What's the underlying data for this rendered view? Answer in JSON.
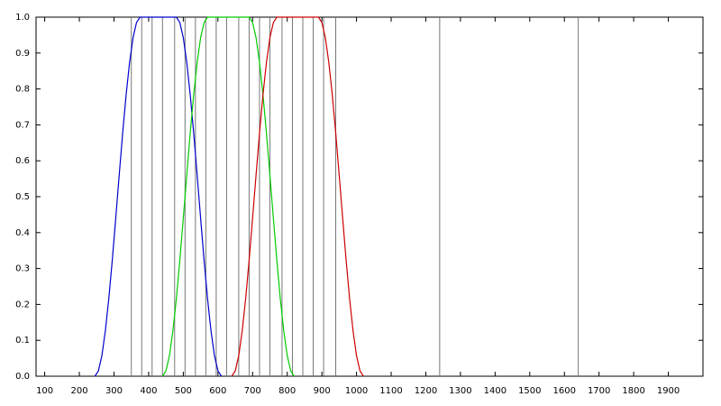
{
  "chart_data": {
    "type": "line",
    "xlim": [
      75,
      2000
    ],
    "ylim": [
      0,
      1
    ],
    "xticks": [
      100,
      200,
      300,
      400,
      500,
      600,
      700,
      800,
      900,
      1000,
      1100,
      1200,
      1300,
      1400,
      1500,
      1600,
      1700,
      1800,
      1900
    ],
    "yticks": [
      {
        "value": 0,
        "label": "0.0"
      },
      0.1,
      0.2,
      0.3,
      0.4,
      0.5,
      0.6,
      0.7,
      0.8,
      0.9,
      {
        "value": 1,
        "label": "1.0"
      }
    ],
    "vlines": {
      "color": "#777777",
      "x": [
        350,
        380,
        410,
        440,
        475,
        505,
        535,
        565,
        595,
        625,
        660,
        690,
        720,
        750,
        785,
        815,
        845,
        875,
        905,
        940,
        1240,
        1640
      ]
    },
    "series": [
      {
        "color": "#0000cc",
        "x": [
          245,
          255,
          265,
          275,
          285,
          295,
          305,
          315,
          325,
          335,
          345,
          355,
          365,
          375,
          480,
          490,
          500,
          510,
          520,
          530,
          540,
          550,
          560,
          570,
          580,
          590,
          600,
          610
        ],
        "values": [
          0,
          0.015,
          0.057,
          0.126,
          0.216,
          0.323,
          0.44,
          0.56,
          0.677,
          0.784,
          0.874,
          0.943,
          0.985,
          1,
          1,
          0.985,
          0.943,
          0.874,
          0.784,
          0.677,
          0.56,
          0.44,
          0.323,
          0.216,
          0.126,
          0.057,
          0.015,
          0
        ]
      },
      {
        "color": "#00cc00",
        "x": [
          440,
          450,
          460,
          470,
          480,
          490,
          500,
          510,
          520,
          530,
          540,
          550,
          560,
          570,
          690,
          700,
          710,
          720,
          730,
          740,
          750,
          760,
          770,
          780,
          790,
          800,
          810,
          820
        ],
        "values": [
          0,
          0.015,
          0.057,
          0.126,
          0.216,
          0.323,
          0.44,
          0.56,
          0.677,
          0.784,
          0.874,
          0.943,
          0.985,
          1,
          1,
          0.985,
          0.943,
          0.874,
          0.784,
          0.677,
          0.56,
          0.44,
          0.323,
          0.216,
          0.126,
          0.057,
          0.015,
          0
        ]
      },
      {
        "color": "#cc0000",
        "x": [
          640,
          650,
          660,
          670,
          680,
          690,
          700,
          710,
          720,
          730,
          740,
          750,
          760,
          770,
          890,
          900,
          910,
          920,
          930,
          940,
          950,
          960,
          970,
          980,
          990,
          1000,
          1010,
          1020
        ],
        "values": [
          0,
          0.015,
          0.057,
          0.126,
          0.216,
          0.323,
          0.44,
          0.56,
          0.677,
          0.784,
          0.874,
          0.943,
          0.985,
          1,
          1,
          0.985,
          0.943,
          0.874,
          0.784,
          0.677,
          0.56,
          0.44,
          0.323,
          0.216,
          0.126,
          0.057,
          0.015,
          0
        ]
      }
    ]
  }
}
